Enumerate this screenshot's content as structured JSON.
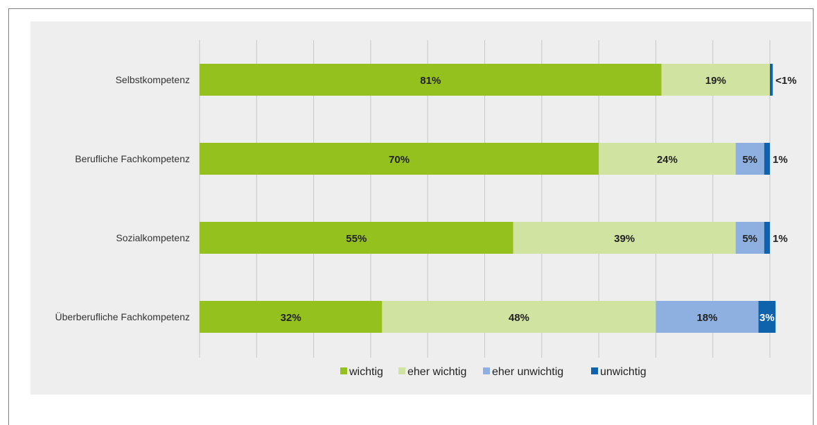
{
  "colors": {
    "wichtig": "#95c11f",
    "eher_wichtig": "#d1e3a1",
    "eher_unwichtig": "#8eb0e0",
    "unwichtig": "#0f63ad"
  },
  "chart_data": {
    "type": "bar",
    "orientation": "horizontal",
    "stacked": true,
    "categories": [
      "Selbstkompetenz",
      "Berufliche Fachkompetenz",
      "Sozialkompetenz",
      "Überberufliche Fachkompetenz"
    ],
    "series": [
      {
        "name": "wichtig",
        "color": "#95c11f",
        "values": [
          81,
          70,
          55,
          32
        ],
        "labels": [
          "81%",
          "70%",
          "55%",
          "32%"
        ]
      },
      {
        "name": "eher wichtig",
        "color": "#d1e3a1",
        "values": [
          19,
          24,
          39,
          48
        ],
        "labels": [
          "19%",
          "24%",
          "39%",
          "48%"
        ]
      },
      {
        "name": "eher unwichtig",
        "color": "#8eb0e0",
        "values": [
          0,
          5,
          5,
          18
        ],
        "labels": [
          "",
          "5%",
          "5%",
          "18%"
        ]
      },
      {
        "name": "unwichtig",
        "color": "#0f63ad",
        "values": [
          0.5,
          1,
          1,
          3
        ],
        "labels": [
          "<1%",
          "1%",
          "1%",
          "3%"
        ]
      }
    ],
    "xlim": [
      0,
      100
    ],
    "grid": true,
    "legend_position": "bottom"
  }
}
